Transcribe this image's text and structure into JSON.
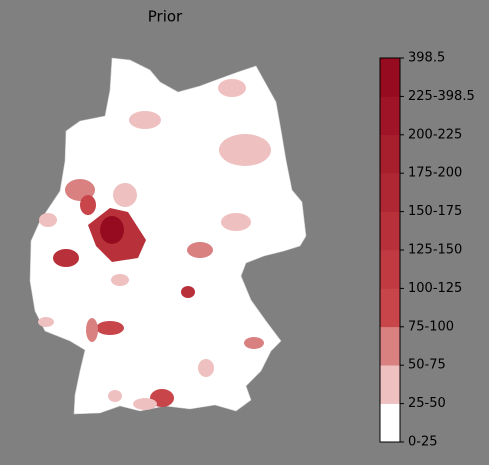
{
  "title": "Prior",
  "colorbar": {
    "labels": [
      "0-25",
      "25-50",
      "50-75",
      "75-100",
      "100-125",
      "125-150",
      "150-175",
      "175-200",
      "200-225",
      "225-398.5",
      "398.5"
    ],
    "colors": [
      "#ffffff",
      "#efc0c0",
      "#d98080",
      "#c8454a",
      "#c13a41",
      "#b83039",
      "#af2733",
      "#a71e2c",
      "#9f1426",
      "#960b1f"
    ]
  }
}
